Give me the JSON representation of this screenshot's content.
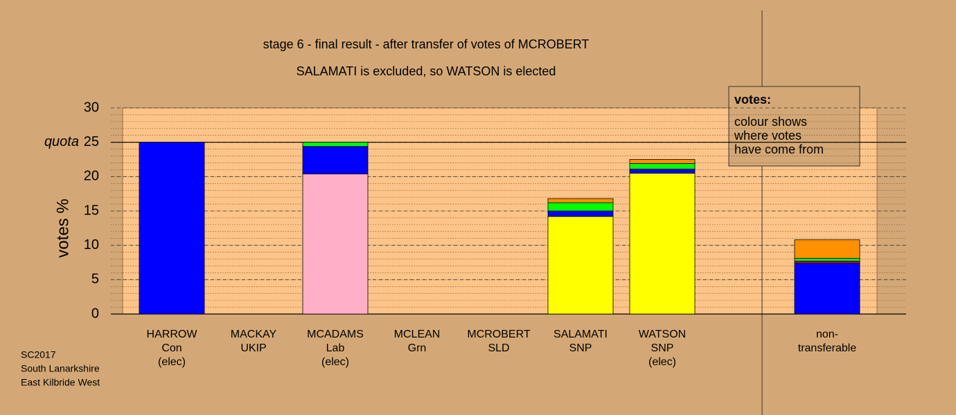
{
  "chart_data": {
    "type": "stacked_bar",
    "title": "stage 6 - final result - after transfer of votes of MCROBERT",
    "subtitle": "SALAMATI is excluded, so WATSON is elected",
    "y_label": "votes %",
    "categories": [
      [
        "HARROW",
        "Con",
        "(elec)"
      ],
      [
        "MACKAY",
        "UKIP"
      ],
      [
        "MCADAMS",
        "Lab",
        "(elec)"
      ],
      [
        "MCLEAN",
        "Grn"
      ],
      [
        "MCROBERT",
        "SLD"
      ],
      [
        "SALAMATI",
        "SNP"
      ],
      [
        "WATSON",
        "SNP",
        "(elec)"
      ],
      [
        "non-",
        "transferable"
      ]
    ],
    "series": [
      {
        "color": "#ffff00",
        "values": [
          0,
          0,
          0,
          0,
          0,
          14.2,
          20.5,
          0
        ]
      },
      {
        "color": "#ffb0c8",
        "values": [
          0,
          0,
          20.4,
          0,
          0,
          0,
          0,
          0
        ]
      },
      {
        "color": "#0000ff",
        "values": [
          25,
          0,
          4.0,
          0,
          0,
          0.8,
          0.6,
          7.4
        ]
      },
      {
        "color": "#c00060",
        "values": [
          0,
          0,
          0,
          0,
          0,
          0,
          0,
          0.3
        ]
      },
      {
        "color": "#00ff00",
        "values": [
          0,
          0,
          0.6,
          0,
          0,
          1.2,
          0.8,
          0.4
        ]
      },
      {
        "color": "#ff9000",
        "values": [
          0,
          0,
          0,
          0,
          0,
          0.6,
          0.6,
          2.7
        ]
      }
    ],
    "ylim": [
      0,
      30
    ],
    "yticks": [
      0,
      5,
      10,
      15,
      20,
      25,
      30
    ],
    "quota": {
      "value": 25,
      "label": "quota"
    },
    "minor_grid_step": 1,
    "grid": true,
    "note": {
      "title": "votes:",
      "lines": [
        "colour shows",
        "where votes",
        "have come from"
      ]
    },
    "footer": [
      "SC2017",
      "South Lanarkshire",
      "East Kilbride West"
    ]
  }
}
